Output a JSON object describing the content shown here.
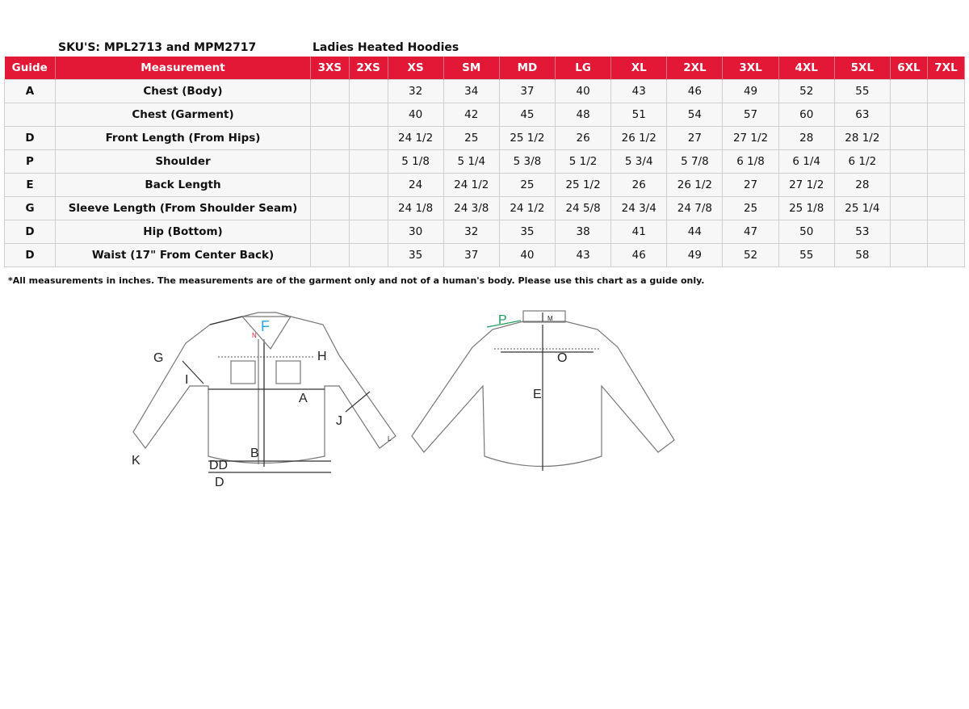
{
  "header": {
    "sku": "SKU'S: MPL2713 and MPM2717",
    "title": "Ladies Heated Hoodies"
  },
  "table": {
    "columns": [
      "Guide",
      "Measurement",
      "3XS",
      "2XS",
      "XS",
      "SM",
      "MD",
      "LG",
      "XL",
      "2XL",
      "3XL",
      "4XL",
      "5XL",
      "6XL",
      "7XL"
    ],
    "rows": [
      [
        "A",
        "Chest (Body)",
        "",
        "",
        "32",
        "34",
        "37",
        "40",
        "43",
        "46",
        "49",
        "52",
        "55",
        "",
        ""
      ],
      [
        "",
        "Chest (Garment)",
        "",
        "",
        "40",
        "42",
        "45",
        "48",
        "51",
        "54",
        "57",
        "60",
        "63",
        "",
        ""
      ],
      [
        "D",
        "Front Length (From Hips)",
        "",
        "",
        "24 1/2",
        "25",
        "25 1/2",
        "26",
        "26 1/2",
        "27",
        "27 1/2",
        "28",
        "28 1/2",
        "",
        ""
      ],
      [
        "P",
        "Shoulder",
        "",
        "",
        "5 1/8",
        "5 1/4",
        "5 3/8",
        "5 1/2",
        "5 3/4",
        "5 7/8",
        "6 1/8",
        "6 1/4",
        "6 1/2",
        "",
        ""
      ],
      [
        "E",
        "Back Length",
        "",
        "",
        "24",
        "24 1/2",
        "25",
        "25 1/2",
        "26",
        "26 1/2",
        "27",
        "27 1/2",
        "28",
        "",
        ""
      ],
      [
        "G",
        "Sleeve Length (From Shoulder Seam)",
        "",
        "",
        "24 1/8",
        "24 3/8",
        "24 1/2",
        "24 5/8",
        "24 3/4",
        "24 7/8",
        "25",
        "25 1/8",
        "25 1/4",
        "",
        ""
      ],
      [
        "D",
        "Hip (Bottom)",
        "",
        "",
        "30",
        "32",
        "35",
        "38",
        "41",
        "44",
        "47",
        "50",
        "53",
        "",
        ""
      ],
      [
        "D",
        "Waist (17\" From Center Back)",
        "",
        "",
        "35",
        "37",
        "40",
        "43",
        "46",
        "49",
        "52",
        "55",
        "58",
        "",
        ""
      ]
    ]
  },
  "note": "*All measurements in inches. The measurements are of the garment only and not of a human's body. Please use this chart as a guide only.",
  "diagram": {
    "front_labels": [
      "F",
      "N",
      "G",
      "H",
      "I",
      "A",
      "J",
      "K",
      "L",
      "B",
      "DD",
      "D"
    ],
    "back_labels": [
      "P",
      "M",
      "O",
      "E"
    ]
  },
  "colors": {
    "header": "#e31837",
    "f_label": "#29a8e0",
    "n_label": "#e31837",
    "p_label": "#1aa05a"
  }
}
